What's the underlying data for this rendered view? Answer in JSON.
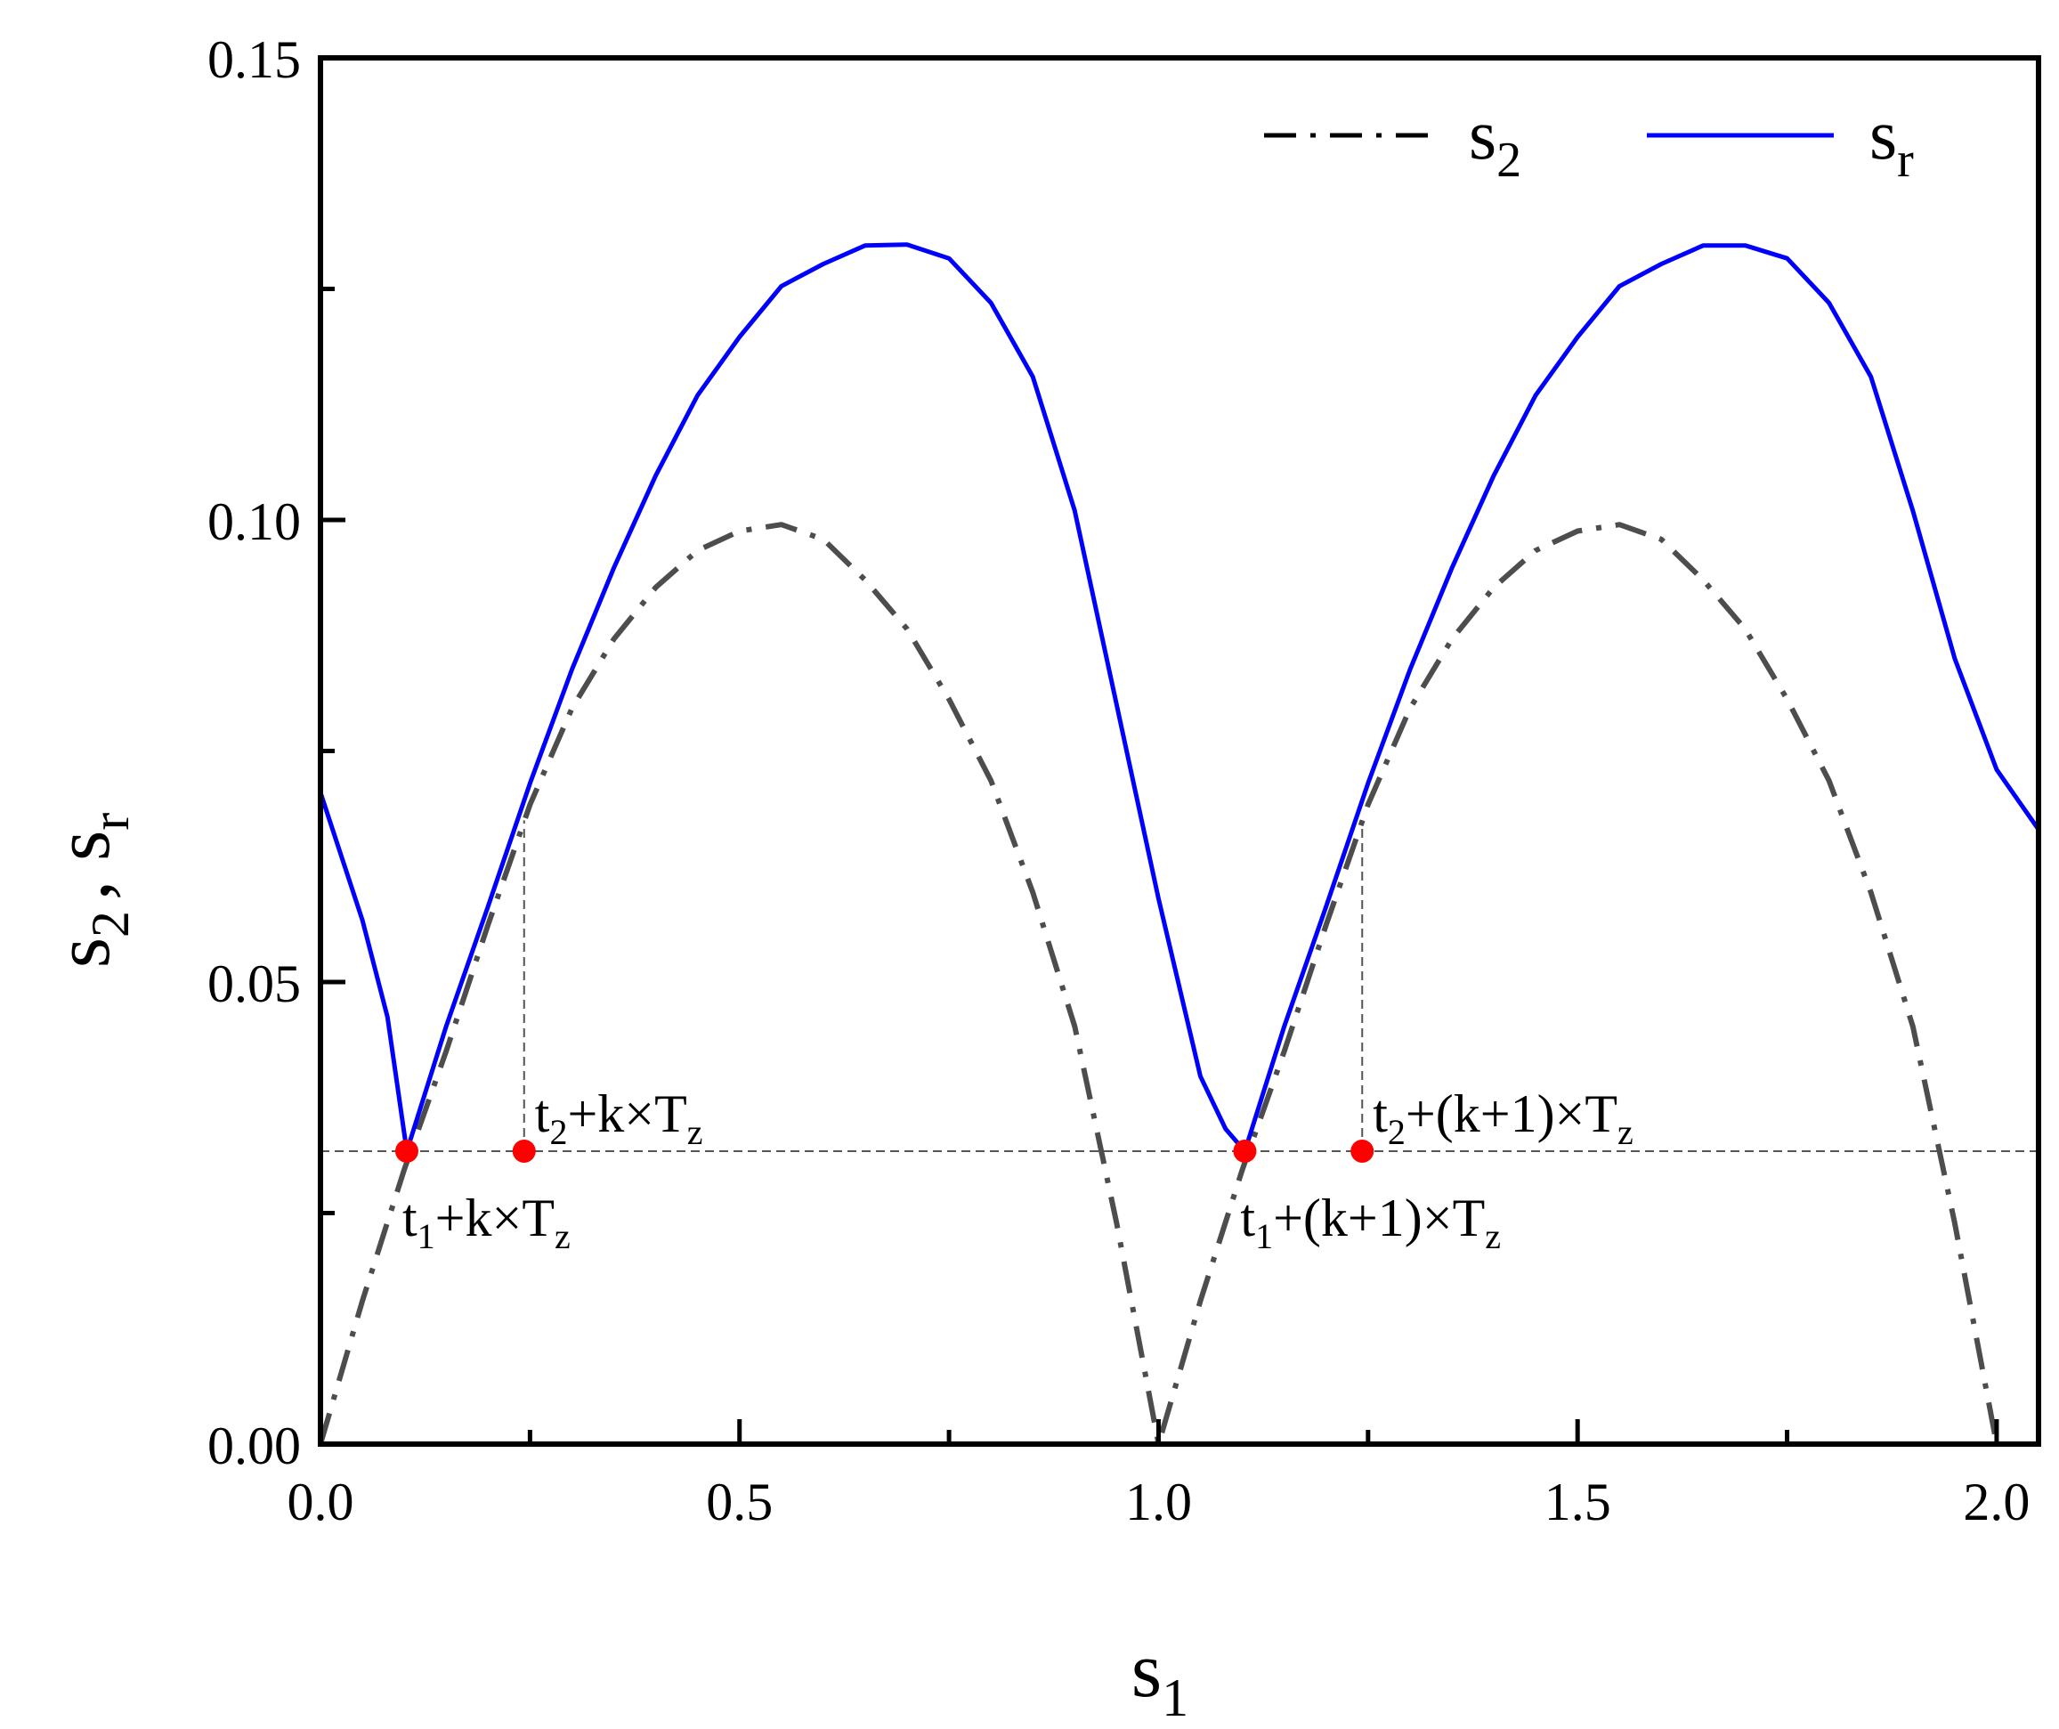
{
  "chart_data": {
    "type": "line",
    "xlabel": {
      "main": "s",
      "sub": "1"
    },
    "ylabel": {
      "first_main": "s",
      "first_sub": "2",
      "separator": ",",
      "second_main": "s",
      "second_sub": "r"
    },
    "xlim": [
      0,
      2.05
    ],
    "ylim": [
      0,
      0.15
    ],
    "x_ticks": [
      "0.0",
      "0.5",
      "1.0",
      "1.5",
      "2.0"
    ],
    "y_ticks": [
      "0.00",
      "0.05",
      "0.10",
      "0.15"
    ],
    "grid": false,
    "legend_position": "top-right",
    "series": [
      {
        "name": {
          "main": "s",
          "sub": "2"
        },
        "style": "dash-dot",
        "color": "#4d4d4d",
        "x": [
          0.0,
          0.05,
          0.1,
          0.15,
          0.2,
          0.25,
          0.3,
          0.35,
          0.4,
          0.45,
          0.5,
          0.55,
          0.6,
          0.65,
          0.7,
          0.75,
          0.8,
          0.85,
          0.9,
          0.95,
          1.0,
          1.05,
          1.1,
          1.15,
          1.2,
          1.25,
          1.3,
          1.35,
          1.4,
          1.45,
          1.5,
          1.55,
          1.6,
          1.65,
          1.7,
          1.75,
          1.8,
          1.85,
          1.9,
          1.95,
          2.0
        ],
        "y": [
          0.0,
          0.0155,
          0.0297,
          0.0425,
          0.0562,
          0.0692,
          0.0796,
          0.0871,
          0.0927,
          0.0967,
          0.0988,
          0.0995,
          0.0979,
          0.0935,
          0.0882,
          0.0806,
          0.0718,
          0.0597,
          0.0452,
          0.0239,
          0.0,
          0.0155,
          0.0297,
          0.0425,
          0.0562,
          0.0692,
          0.0796,
          0.0871,
          0.0927,
          0.0967,
          0.0988,
          0.0995,
          0.0979,
          0.0935,
          0.0882,
          0.0806,
          0.0718,
          0.0597,
          0.0452,
          0.0239,
          0.0
        ]
      },
      {
        "name": {
          "main": "s",
          "sub": "r"
        },
        "style": "solid",
        "color": "#0000ff",
        "x": [
          0.0,
          0.05,
          0.08,
          0.103,
          0.15,
          0.2,
          0.25,
          0.3,
          0.35,
          0.4,
          0.45,
          0.5,
          0.55,
          0.6,
          0.65,
          0.7,
          0.75,
          0.8,
          0.85,
          0.9,
          0.95,
          1.0,
          1.05,
          1.08,
          1.103,
          1.15,
          1.2,
          1.25,
          1.3,
          1.35,
          1.4,
          1.45,
          1.5,
          1.55,
          1.6,
          1.65,
          1.7,
          1.75,
          1.8,
          1.85,
          1.9,
          1.95,
          2.0,
          2.05
        ],
        "y": [
          0.0705,
          0.0567,
          0.0462,
          0.0317,
          0.0452,
          0.0582,
          0.0715,
          0.0838,
          0.0948,
          0.1048,
          0.1135,
          0.1198,
          0.1253,
          0.1277,
          0.1297,
          0.1298,
          0.1283,
          0.1235,
          0.1155,
          0.101,
          0.08,
          0.059,
          0.0398,
          0.0341,
          0.0317,
          0.0452,
          0.0582,
          0.0715,
          0.0838,
          0.0948,
          0.1048,
          0.1135,
          0.1198,
          0.1253,
          0.1277,
          0.1297,
          0.1297,
          0.1283,
          0.1235,
          0.1155,
          0.101,
          0.085,
          0.073,
          0.0665
        ]
      }
    ],
    "reference_line": {
      "y": 0.0317,
      "style": "dashed"
    },
    "annotations": [
      {
        "x": 0.103,
        "y": 0.0317,
        "label_main": "t",
        "label_sub": "1",
        "label_rest": "+k×T",
        "label_end_sub": "z",
        "placement": "below"
      },
      {
        "x": 0.243,
        "y": 0.0317,
        "label_main": "t",
        "label_sub": "2",
        "label_rest": "+k×T",
        "label_end_sub": "z",
        "placement": "above"
      },
      {
        "x": 1.103,
        "y": 0.0317,
        "label_main": "t",
        "label_sub": "1",
        "label_rest": "+(k+1)×T",
        "label_end_sub": "z",
        "placement": "below"
      },
      {
        "x": 1.243,
        "y": 0.0317,
        "label_main": "t",
        "label_sub": "2",
        "label_rest": "+(k+1)×T",
        "label_end_sub": "z",
        "placement": "above"
      }
    ],
    "vertical_guides": [
      {
        "x": 0.243,
        "y_from": 0.0317,
        "y_to": 0.0675
      },
      {
        "x": 1.243,
        "y_from": 0.0317,
        "y_to": 0.0675
      }
    ],
    "marker_color": "#ff0000"
  }
}
